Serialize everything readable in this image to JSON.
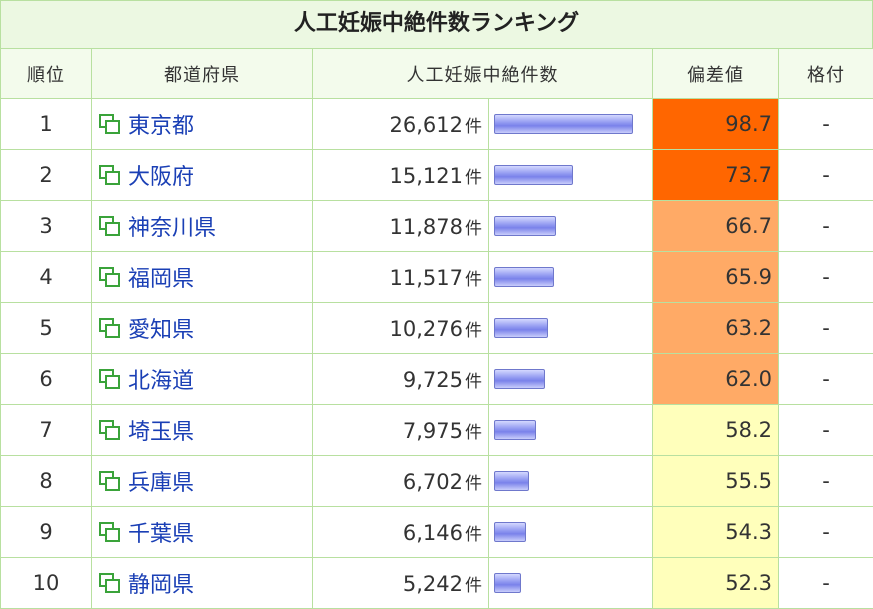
{
  "title": "人工妊娠中絶件数ランキング",
  "headers": {
    "rank": "順位",
    "prefecture": "都道府県",
    "count": "人工妊娠中絶件数",
    "deviation": "偏差値",
    "grade": "格付"
  },
  "unit": "件",
  "bar_max": 26612,
  "colors": {
    "tier_top": "#ff6600",
    "tier_high": "#ffaa66",
    "tier_mid": "#ffffbb",
    "link": "#1a3fb5"
  },
  "icon": "windows-copy-icon",
  "rows": [
    {
      "rank": "1",
      "pref": "東京都",
      "count_text": "26,612",
      "count": 26612,
      "dev": "98.7",
      "tier": "top",
      "grade": "-"
    },
    {
      "rank": "2",
      "pref": "大阪府",
      "count_text": "15,121",
      "count": 15121,
      "dev": "73.7",
      "tier": "top",
      "grade": "-"
    },
    {
      "rank": "3",
      "pref": "神奈川県",
      "count_text": "11,878",
      "count": 11878,
      "dev": "66.7",
      "tier": "high",
      "grade": "-"
    },
    {
      "rank": "4",
      "pref": "福岡県",
      "count_text": "11,517",
      "count": 11517,
      "dev": "65.9",
      "tier": "high",
      "grade": "-"
    },
    {
      "rank": "5",
      "pref": "愛知県",
      "count_text": "10,276",
      "count": 10276,
      "dev": "63.2",
      "tier": "high",
      "grade": "-"
    },
    {
      "rank": "6",
      "pref": "北海道",
      "count_text": "9,725",
      "count": 9725,
      "dev": "62.0",
      "tier": "high",
      "grade": "-"
    },
    {
      "rank": "7",
      "pref": "埼玉県",
      "count_text": "7,975",
      "count": 7975,
      "dev": "58.2",
      "tier": "mid",
      "grade": "-"
    },
    {
      "rank": "8",
      "pref": "兵庫県",
      "count_text": "6,702",
      "count": 6702,
      "dev": "55.5",
      "tier": "mid",
      "grade": "-"
    },
    {
      "rank": "9",
      "pref": "千葉県",
      "count_text": "6,146",
      "count": 6146,
      "dev": "54.3",
      "tier": "mid",
      "grade": "-"
    },
    {
      "rank": "10",
      "pref": "静岡県",
      "count_text": "5,242",
      "count": 5242,
      "dev": "52.3",
      "tier": "mid",
      "grade": "-"
    }
  ]
}
